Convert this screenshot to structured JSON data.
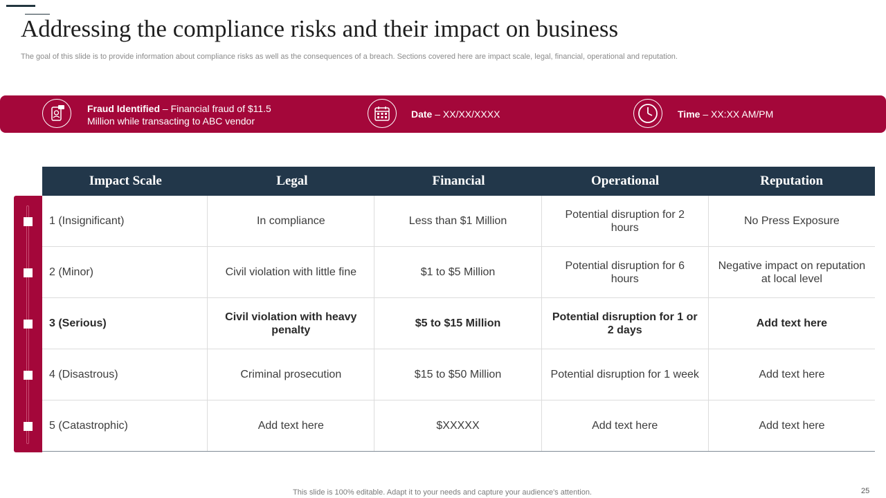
{
  "title": "Addressing the compliance risks and their impact on business",
  "subtitle": "The goal of this slide is to provide information about compliance risks as well as the consequences of a breach. Sections covered here are impact scale, legal, financial, operational and reputation.",
  "info_bar": {
    "fraud": {
      "label": "Fraud Identified",
      "line1": " – Financial fraud of $11.5",
      "line2": "Million  while transacting to ABC vendor",
      "icon": "fraud-phone-icon"
    },
    "date": {
      "label": "Date",
      "value": " – XX/XX/XXXX",
      "icon": "calendar-icon"
    },
    "time": {
      "label": "Time",
      "value": " – XX:XX  AM/PM",
      "icon": "clock-icon"
    }
  },
  "table": {
    "headers": [
      "Impact Scale",
      "Legal",
      "Financial",
      "Operational",
      "Reputation"
    ],
    "rows": [
      {
        "cells": [
          "1 (Insignificant)",
          "In compliance",
          "Less than $1 Million",
          "Potential disruption for 2 hours",
          "No Press Exposure"
        ]
      },
      {
        "cells": [
          "2 (Minor)",
          "Civil violation with little fine",
          "$1 to $5 Million",
          "Potential disruption for 6 hours",
          "Negative impact on reputation at local level"
        ]
      },
      {
        "cells": [
          "3 (Serious)",
          "Civil violation with heavy penalty",
          "$5 to $15 Million",
          "Potential disruption for 1 or 2 days",
          "Add text here"
        ]
      },
      {
        "cells": [
          "4 (Disastrous)",
          "Criminal prosecution",
          "$15 to $50 Million",
          "Potential disruption for 1 week",
          "Add text here"
        ]
      },
      {
        "cells": [
          "5 (Catastrophic)",
          "Add text here",
          "$XXXXX",
          "Add text here",
          "Add text here"
        ]
      }
    ]
  },
  "footer_note": "This slide is 100% editable. Adapt it to your needs and capture your audience's attention.",
  "page_number": "25",
  "colors": {
    "accent": "#a4073a",
    "header": "#22374a"
  }
}
